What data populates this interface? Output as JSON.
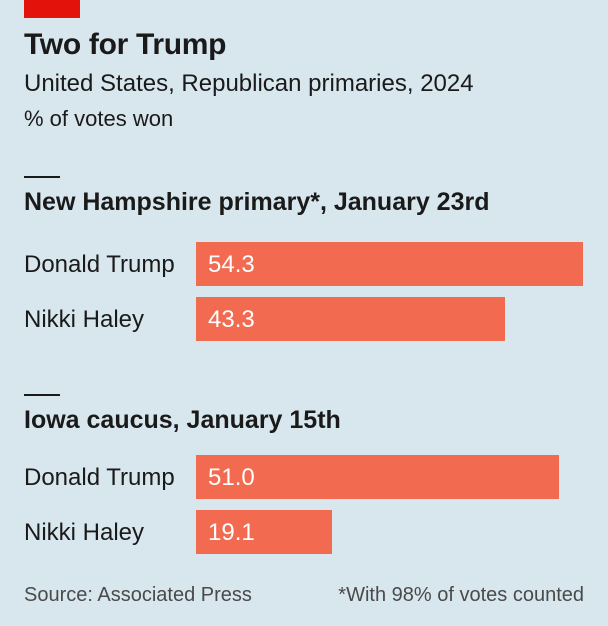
{
  "header": {
    "title": "Two for Trump",
    "subtitle": "United States, Republican primaries, 2024",
    "unit": "% of votes won"
  },
  "chart_data": [
    {
      "type": "bar",
      "orientation": "horizontal",
      "title": "New Hampshire primary*, January 23rd",
      "categories": [
        "Donald Trump",
        "Nikki Haley"
      ],
      "values": [
        54.3,
        43.3
      ],
      "value_labels": [
        "54.3",
        "43.3"
      ],
      "xlim": [
        0,
        54.3
      ],
      "grid": false,
      "color": "#f26a4f"
    },
    {
      "type": "bar",
      "orientation": "horizontal",
      "title": "Iowa caucus, January 15th",
      "categories": [
        "Donald Trump",
        "Nikki Haley"
      ],
      "values": [
        51.0,
        19.1
      ],
      "value_labels": [
        "51.0",
        "19.1"
      ],
      "xlim": [
        0,
        54.3
      ],
      "grid": false,
      "color": "#f26a4f"
    }
  ],
  "footer": {
    "source": "Source: Associated Press",
    "footnote": "*With 98% of votes counted"
  },
  "colors": {
    "background": "#d8e6ee",
    "accent": "#e3120b",
    "bar": "#f26a4f"
  }
}
